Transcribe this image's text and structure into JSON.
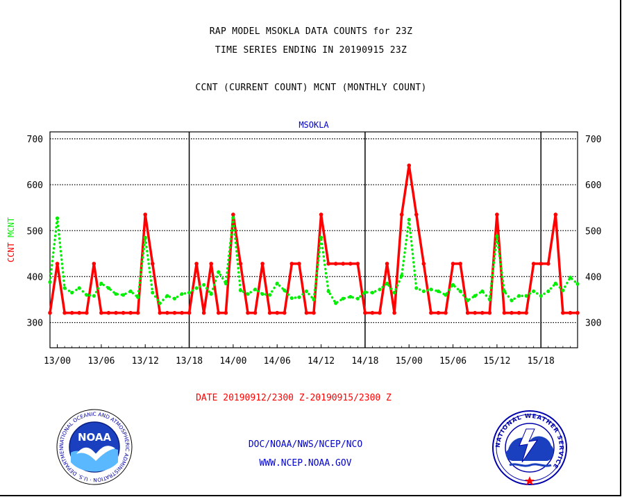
{
  "titles": {
    "line1": "RAP MODEL MSOKLA DATA COUNTS for 23Z",
    "line2": "TIME SERIES ENDING IN 20190915 23Z",
    "line3": "CCNT (CURRENT COUNT) MCNT (MONTHLY COUNT)"
  },
  "footer": {
    "date_range": "DATE 20190912/2300 Z-20190915/2300 Z",
    "org": "DOC/NOAA/NWS/NCEP/NCO",
    "url": "WWW.NCEP.NOAA.GOV"
  },
  "logos": {
    "noaa_text": "NOAA",
    "noaa_ring": "NATIONAL OCEANIC AND ATMOSPHERIC ADMINISTRATION · U.S. DEPARTMENT OF COMMERCE",
    "nws_ring": "NATIONAL WEATHER SERVICE"
  },
  "colors": {
    "ccnt": "#ff0000",
    "mcnt": "#00ee00",
    "plot_title": "#0000cc",
    "footer_text": "#0000cc"
  },
  "chart_data": {
    "type": "line",
    "plot_title": "MSOKLA",
    "ylabel_parts": [
      {
        "text": "CCNT",
        "color": "#ff0000"
      },
      {
        "text": "MCNT",
        "color": "#00ee00"
      }
    ],
    "x_tick_labels": [
      "13/00",
      "13/06",
      "13/12",
      "13/18",
      "14/00",
      "14/06",
      "14/12",
      "14/18",
      "15/00",
      "15/06",
      "15/12",
      "15/18"
    ],
    "x_tick_hours": [
      1,
      7,
      13,
      19,
      25,
      31,
      37,
      43,
      49,
      55,
      61,
      67
    ],
    "day_boundary_hours": [
      19,
      43,
      67
    ],
    "xlim_hours": [
      0,
      72
    ],
    "x_hours_note": "hours since 20190912/2300 Z",
    "ylim": [
      245,
      715
    ],
    "y_ticks": [
      300,
      400,
      500,
      600,
      700
    ],
    "grid": true,
    "series": [
      {
        "name": "CCNT",
        "color": "#ff0000",
        "style": "solid",
        "x": [
          0,
          1,
          2,
          3,
          4,
          5,
          6,
          7,
          8,
          9,
          10,
          11,
          12,
          13,
          14,
          15,
          16,
          17,
          18,
          19,
          20,
          21,
          22,
          23,
          24,
          25,
          26,
          27,
          28,
          29,
          30,
          31,
          32,
          33,
          34,
          35,
          36,
          37,
          38,
          39,
          40,
          41,
          42,
          43,
          44,
          45,
          46,
          47,
          48,
          49,
          50,
          51,
          52,
          53,
          54,
          55,
          56,
          57,
          58,
          59,
          60,
          61,
          62,
          63,
          64,
          65,
          66,
          67,
          68,
          69,
          70,
          71,
          72
        ],
        "values": [
          321,
          428,
          321,
          321,
          321,
          321,
          428,
          321,
          321,
          321,
          321,
          321,
          321,
          535,
          428,
          321,
          321,
          321,
          321,
          321,
          428,
          321,
          428,
          321,
          321,
          535,
          428,
          321,
          321,
          428,
          321,
          321,
          321,
          428,
          428,
          321,
          321,
          535,
          428,
          428,
          428,
          428,
          428,
          321,
          321,
          321,
          428,
          321,
          535,
          642,
          535,
          428,
          321,
          321,
          321,
          428,
          428,
          321,
          321,
          321,
          321,
          535,
          321,
          321,
          321,
          321,
          428,
          428,
          428,
          535,
          321,
          321,
          321
        ]
      },
      {
        "name": "MCNT",
        "color": "#00ee00",
        "style": "dotted",
        "x": [
          0,
          1,
          2,
          3,
          4,
          5,
          6,
          7,
          8,
          9,
          10,
          11,
          12,
          13,
          14,
          15,
          16,
          17,
          18,
          19,
          20,
          21,
          22,
          23,
          24,
          25,
          26,
          27,
          28,
          29,
          30,
          31,
          32,
          33,
          34,
          35,
          36,
          37,
          38,
          39,
          40,
          41,
          42,
          43,
          44,
          45,
          46,
          47,
          48,
          49,
          50,
          51,
          52,
          53,
          54,
          55,
          56,
          57,
          58,
          59,
          60,
          61,
          62,
          63,
          64,
          65,
          66,
          67,
          68,
          69,
          70,
          71,
          72
        ],
        "values": [
          388,
          527,
          375,
          365,
          375,
          360,
          358,
          385,
          375,
          362,
          360,
          368,
          355,
          485,
          365,
          342,
          358,
          352,
          362,
          365,
          375,
          382,
          362,
          410,
          385,
          528,
          370,
          362,
          372,
          362,
          360,
          385,
          370,
          353,
          355,
          368,
          350,
          485,
          368,
          342,
          352,
          356,
          352,
          366,
          365,
          372,
          385,
          365,
          402,
          524,
          375,
          368,
          372,
          368,
          360,
          382,
          368,
          348,
          358,
          368,
          350,
          488,
          368,
          348,
          358,
          358,
          368,
          358,
          368,
          385,
          370,
          398,
          384
        ]
      }
    ]
  }
}
